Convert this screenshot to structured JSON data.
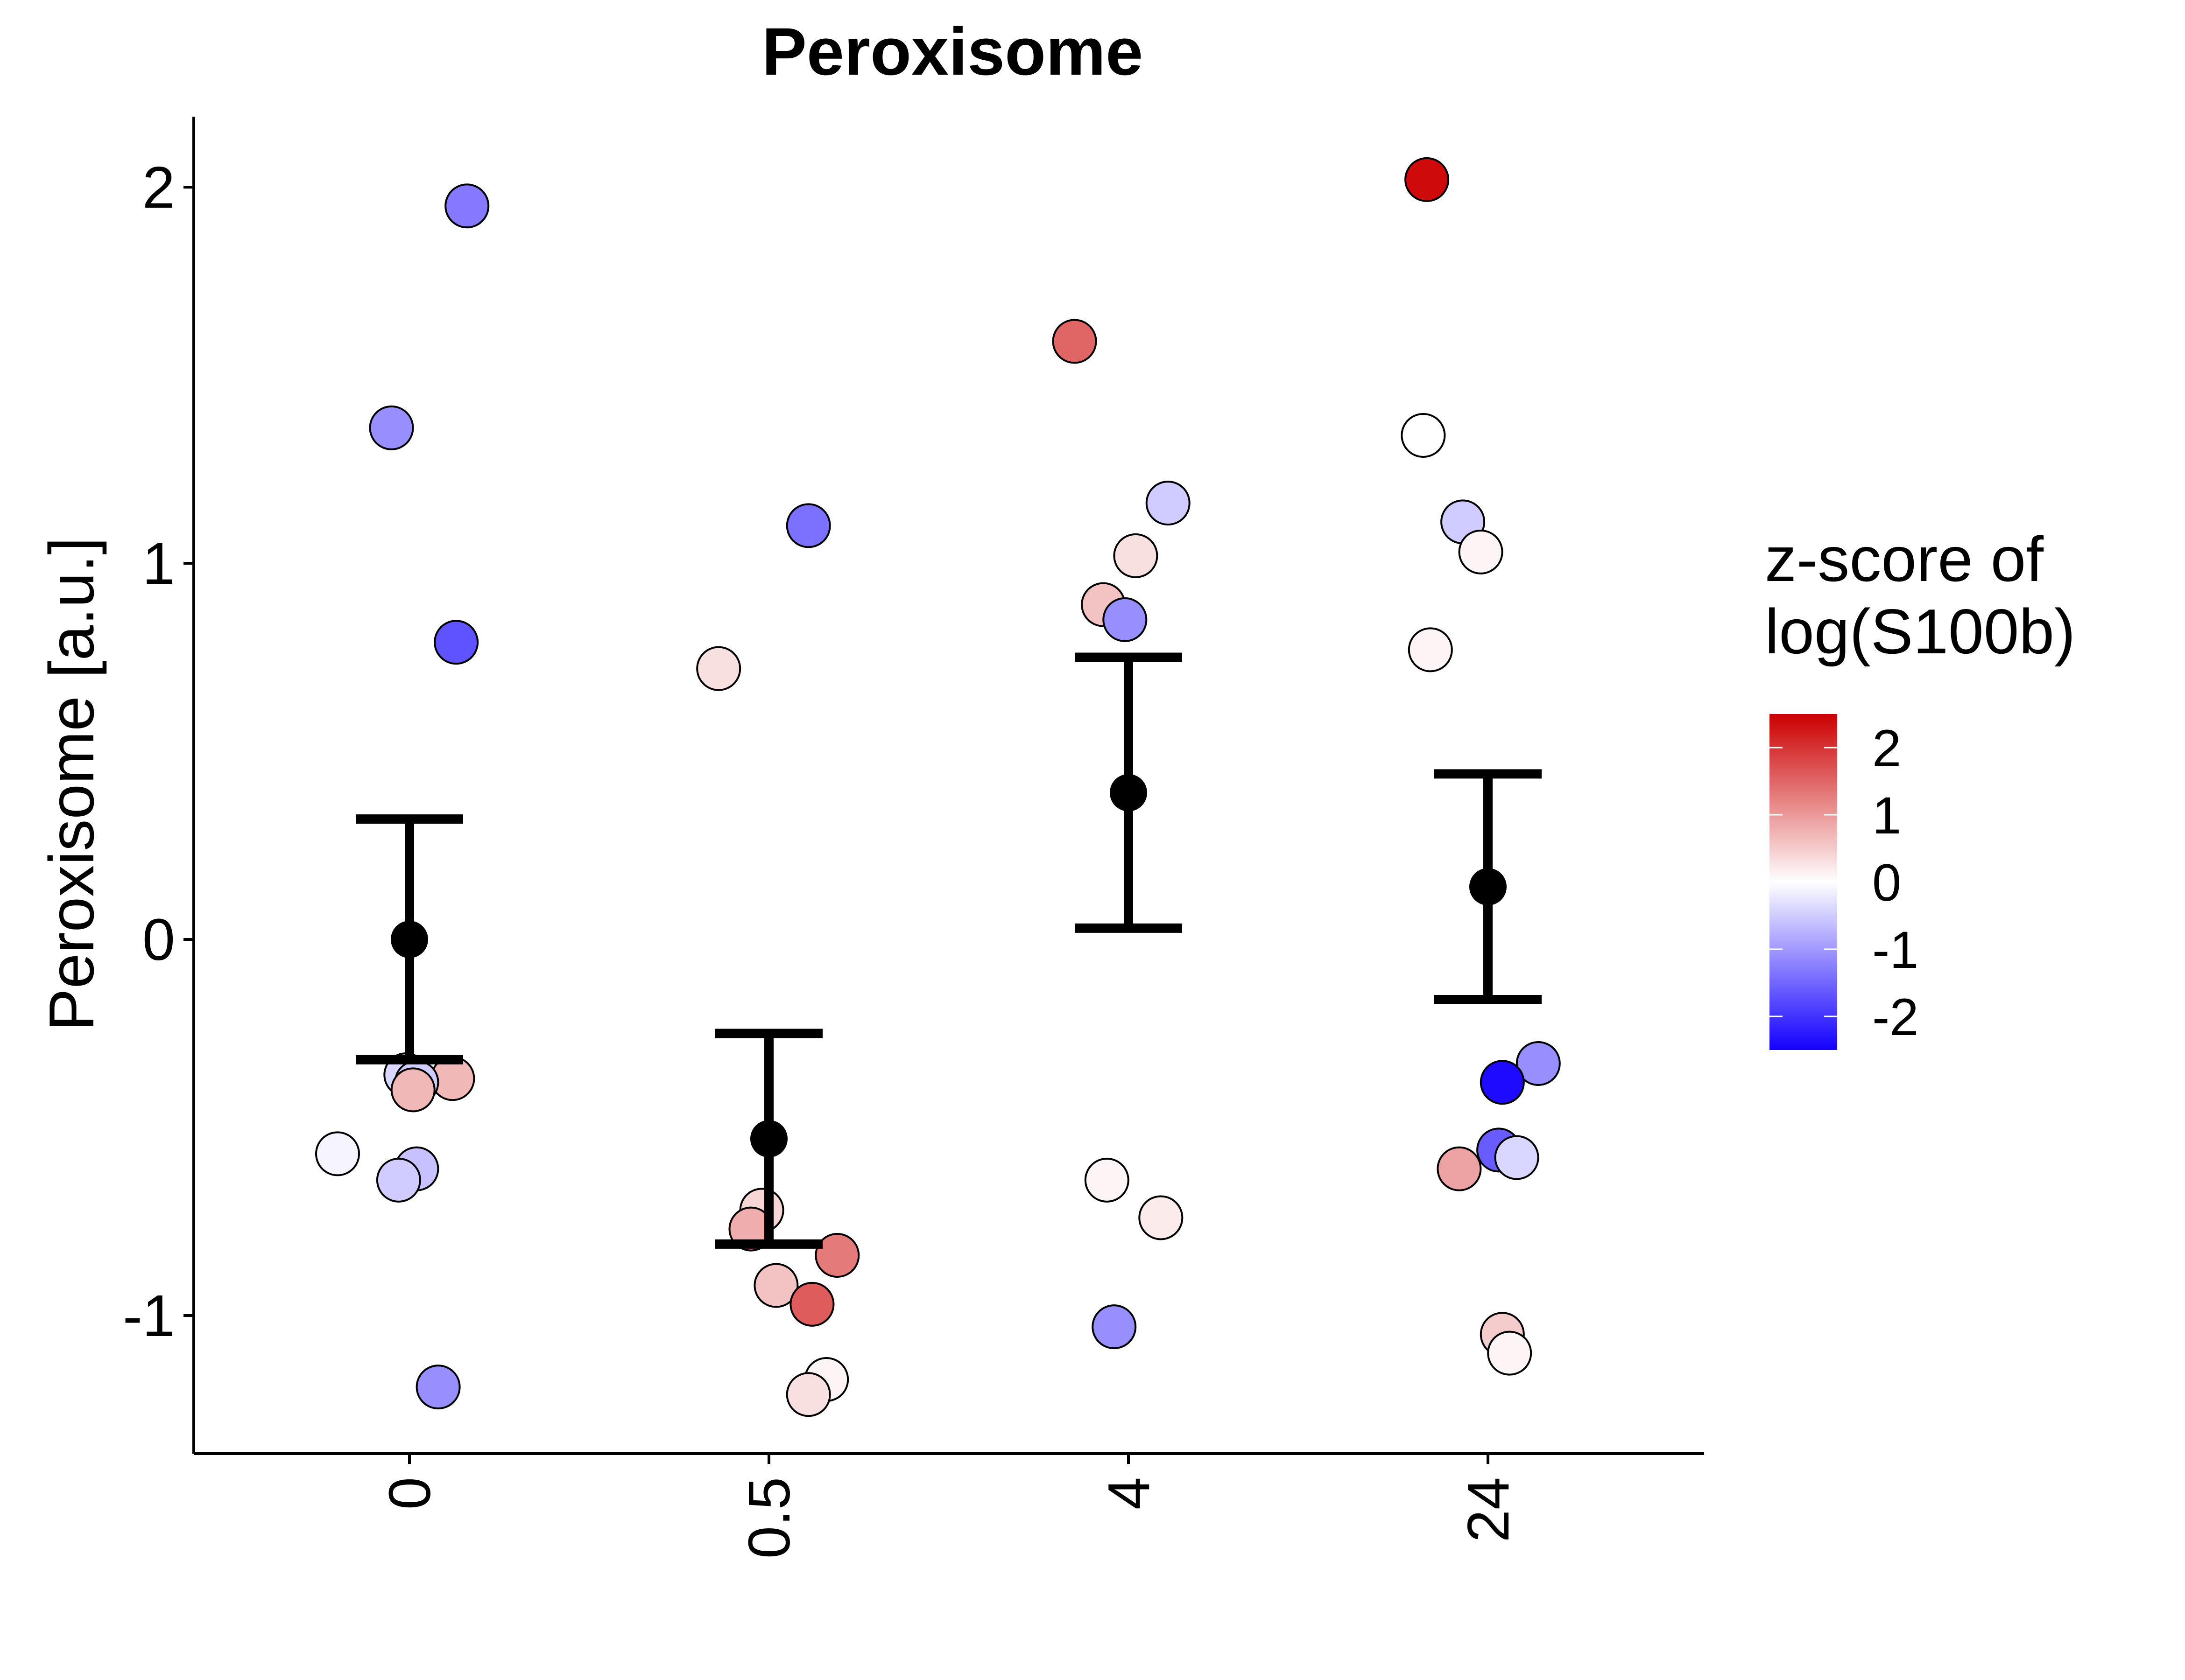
{
  "chart_data": {
    "type": "scatter",
    "title": "Peroxisome",
    "xlabel": "",
    "ylabel": "Peroxisome [a.u.]",
    "categories": [
      "0",
      "0.5",
      "4",
      "24"
    ],
    "ylim": [
      -1.37,
      2.18
    ],
    "yticks": [
      -1,
      0,
      1,
      2
    ],
    "y_tick_labels": [
      "-1",
      "0",
      "1",
      "2"
    ],
    "grid": false,
    "legend": {
      "title_lines": [
        "z-score of",
        "log(S100b)"
      ],
      "placement": "right",
      "range": [
        -2.5,
        2.5
      ],
      "ticks": [
        2,
        1,
        0,
        -1,
        -2
      ],
      "tick_labels": [
        "2",
        "1",
        "0",
        "-1",
        "-2"
      ],
      "color_low": "#1400ff",
      "color_mid": "#ffffff",
      "color_high": "#cc0000"
    },
    "summary": [
      {
        "category": "0",
        "mean": 0.0,
        "lower": -0.32,
        "upper": 0.32
      },
      {
        "category": "0.5",
        "mean": -0.53,
        "lower": -0.81,
        "upper": -0.25
      },
      {
        "category": "4",
        "mean": 0.39,
        "lower": 0.03,
        "upper": 0.75
      },
      {
        "category": "24",
        "mean": 0.14,
        "lower": -0.16,
        "upper": 0.44
      }
    ],
    "points": [
      {
        "category": "0",
        "jitter": 0.16,
        "y": 1.95,
        "z": -1.3
      },
      {
        "category": "0",
        "jitter": -0.05,
        "y": 1.36,
        "z": -1.1
      },
      {
        "category": "0",
        "jitter": 0.13,
        "y": 0.79,
        "z": -1.7
      },
      {
        "category": "0",
        "jitter": -0.01,
        "y": -0.36,
        "z": -0.4
      },
      {
        "category": "0",
        "jitter": 0.12,
        "y": -0.37,
        "z": 0.7
      },
      {
        "category": "0",
        "jitter": 0.02,
        "y": -0.38,
        "z": -0.5
      },
      {
        "category": "0",
        "jitter": 0.01,
        "y": -0.4,
        "z": 0.7
      },
      {
        "category": "0",
        "jitter": -0.2,
        "y": -0.57,
        "z": -0.1
      },
      {
        "category": "0",
        "jitter": 0.02,
        "y": -0.61,
        "z": -0.6
      },
      {
        "category": "0",
        "jitter": -0.03,
        "y": -0.64,
        "z": -0.5
      },
      {
        "category": "0",
        "jitter": 0.08,
        "y": -1.19,
        "z": -1.1
      },
      {
        "category": "0.5",
        "jitter": 0.11,
        "y": 1.1,
        "z": -1.4
      },
      {
        "category": "0.5",
        "jitter": -0.14,
        "y": 0.72,
        "z": 0.3
      },
      {
        "category": "0.5",
        "jitter": -0.02,
        "y": -0.72,
        "z": 0.4
      },
      {
        "category": "0.5",
        "jitter": -0.05,
        "y": -0.77,
        "z": 0.8
      },
      {
        "category": "0.5",
        "jitter": 0.19,
        "y": -0.84,
        "z": 1.3
      },
      {
        "category": "0.5",
        "jitter": 0.02,
        "y": -0.92,
        "z": 0.6
      },
      {
        "category": "0.5",
        "jitter": 0.12,
        "y": -0.97,
        "z": 1.6
      },
      {
        "category": "0.5",
        "jitter": 0.16,
        "y": -1.17,
        "z": 0.1
      },
      {
        "category": "0.5",
        "jitter": 0.11,
        "y": -1.21,
        "z": 0.3
      },
      {
        "category": "4",
        "jitter": -0.15,
        "y": 1.59,
        "z": 1.5
      },
      {
        "category": "4",
        "jitter": 0.11,
        "y": 1.16,
        "z": -0.5
      },
      {
        "category": "4",
        "jitter": 0.02,
        "y": 1.02,
        "z": 0.3
      },
      {
        "category": "4",
        "jitter": -0.07,
        "y": 0.89,
        "z": 0.6
      },
      {
        "category": "4",
        "jitter": -0.01,
        "y": 0.85,
        "z": -1.1
      },
      {
        "category": "4",
        "jitter": -0.06,
        "y": -0.64,
        "z": 0.1
      },
      {
        "category": "4",
        "jitter": 0.09,
        "y": -0.74,
        "z": 0.2
      },
      {
        "category": "4",
        "jitter": -0.04,
        "y": -1.03,
        "z": -1.1
      },
      {
        "category": "24",
        "jitter": -0.17,
        "y": 2.02,
        "z": 2.4
      },
      {
        "category": "24",
        "jitter": -0.18,
        "y": 1.34,
        "z": 0.0
      },
      {
        "category": "24",
        "jitter": -0.07,
        "y": 1.11,
        "z": -0.5
      },
      {
        "category": "24",
        "jitter": -0.02,
        "y": 1.03,
        "z": 0.1
      },
      {
        "category": "24",
        "jitter": -0.16,
        "y": 0.77,
        "z": 0.1
      },
      {
        "category": "24",
        "jitter": 0.14,
        "y": -0.33,
        "z": -1.1
      },
      {
        "category": "24",
        "jitter": 0.04,
        "y": -0.38,
        "z": -2.4
      },
      {
        "category": "24",
        "jitter": 0.03,
        "y": -0.56,
        "z": -1.6
      },
      {
        "category": "24",
        "jitter": 0.08,
        "y": -0.58,
        "z": -0.4
      },
      {
        "category": "24",
        "jitter": -0.08,
        "y": -0.61,
        "z": 0.9
      },
      {
        "category": "24",
        "jitter": 0.04,
        "y": -1.05,
        "z": 0.5
      },
      {
        "category": "24",
        "jitter": 0.06,
        "y": -1.1,
        "z": 0.1
      }
    ]
  }
}
